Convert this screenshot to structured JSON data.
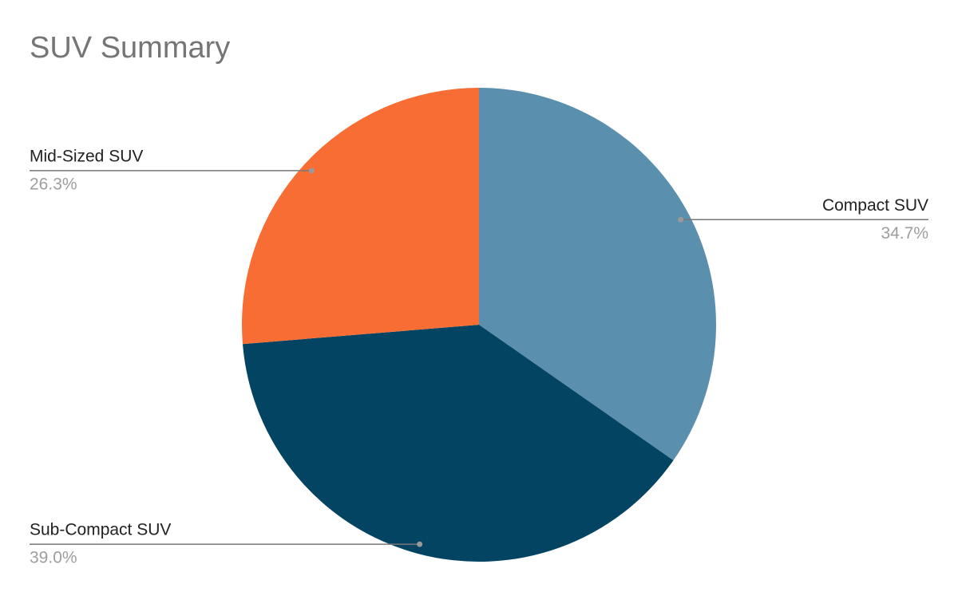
{
  "chart_data": {
    "type": "pie",
    "title": "SUV Summary",
    "categories": [
      "Compact SUV",
      "Sub-Compact SUV",
      "Mid-Sized SUV"
    ],
    "values": [
      34.7,
      39.0,
      26.3
    ],
    "value_labels": [
      "34.7%",
      "39.0%",
      "26.3%"
    ],
    "colors": [
      "#5b8fae",
      "#024461",
      "#f76d33"
    ]
  }
}
